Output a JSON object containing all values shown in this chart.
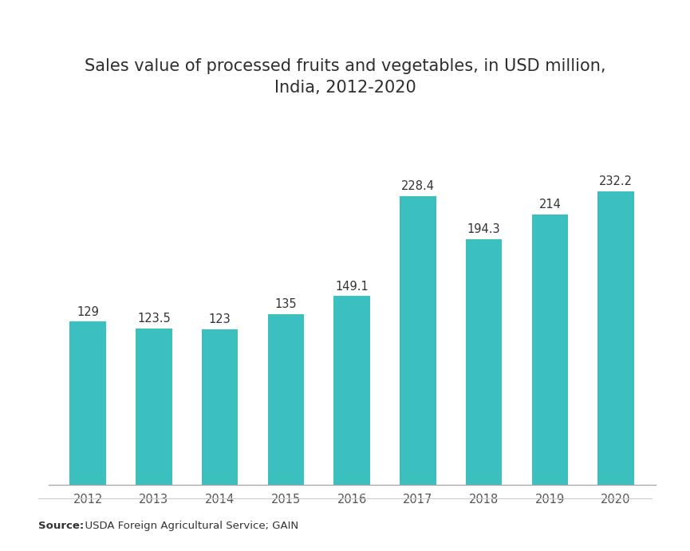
{
  "title_line1": "Sales value of processed fruits and vegetables, in USD million,",
  "title_line2": "India, 2012-2020",
  "years": [
    "2012",
    "2013",
    "2014",
    "2015",
    "2016",
    "2017",
    "2018",
    "2019",
    "2020"
  ],
  "values": [
    129,
    123.5,
    123,
    135,
    149.1,
    228.4,
    194.3,
    214,
    232.2
  ],
  "bar_color": "#3bbfbf",
  "background_color": "#ffffff",
  "title_fontsize": 15,
  "label_fontsize": 10.5,
  "tick_fontsize": 10.5,
  "source_text": "  USDA Foreign Agricultural Service; GAIN",
  "source_bold": "Source:",
  "ylim": [
    0,
    270
  ],
  "bar_width": 0.55
}
